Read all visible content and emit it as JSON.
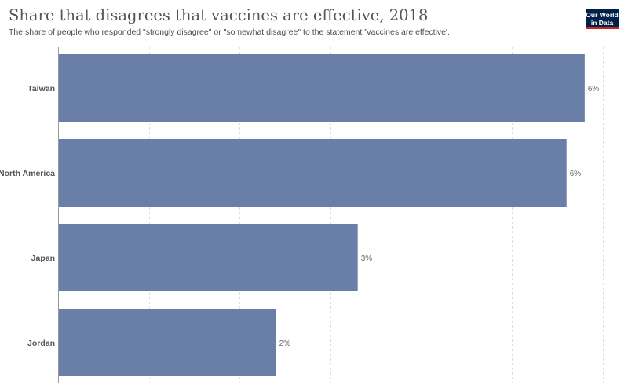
{
  "header": {
    "title": "Share that disagrees that vaccines are effective, 2018",
    "subtitle": "The share of people who responded \"strongly disagree\" or \"somewhat disagree\" to the statement 'Vaccines are effective'."
  },
  "logo": {
    "line1": "Our World",
    "line2": "in Data",
    "background": "#002147",
    "accent": "#ce261e"
  },
  "chart_data": {
    "type": "bar",
    "orientation": "horizontal",
    "title": "Share that disagrees that vaccines are effective, 2018",
    "subtitle": "The share of people who responded \"strongly disagree\" or \"somewhat disagree\" to the statement 'Vaccines are effective'.",
    "categories": [
      "Taiwan",
      "North America",
      "Japan",
      "Jordan"
    ],
    "values": [
      5.8,
      5.6,
      3.3,
      2.4
    ],
    "data_labels": [
      "6%",
      "6%",
      "3%",
      "2%"
    ],
    "xlim": [
      0,
      6
    ],
    "x_gridlines": [
      0,
      1,
      2,
      3,
      4,
      5,
      6
    ],
    "grid": true,
    "bar_color": "#6a7fa8"
  }
}
